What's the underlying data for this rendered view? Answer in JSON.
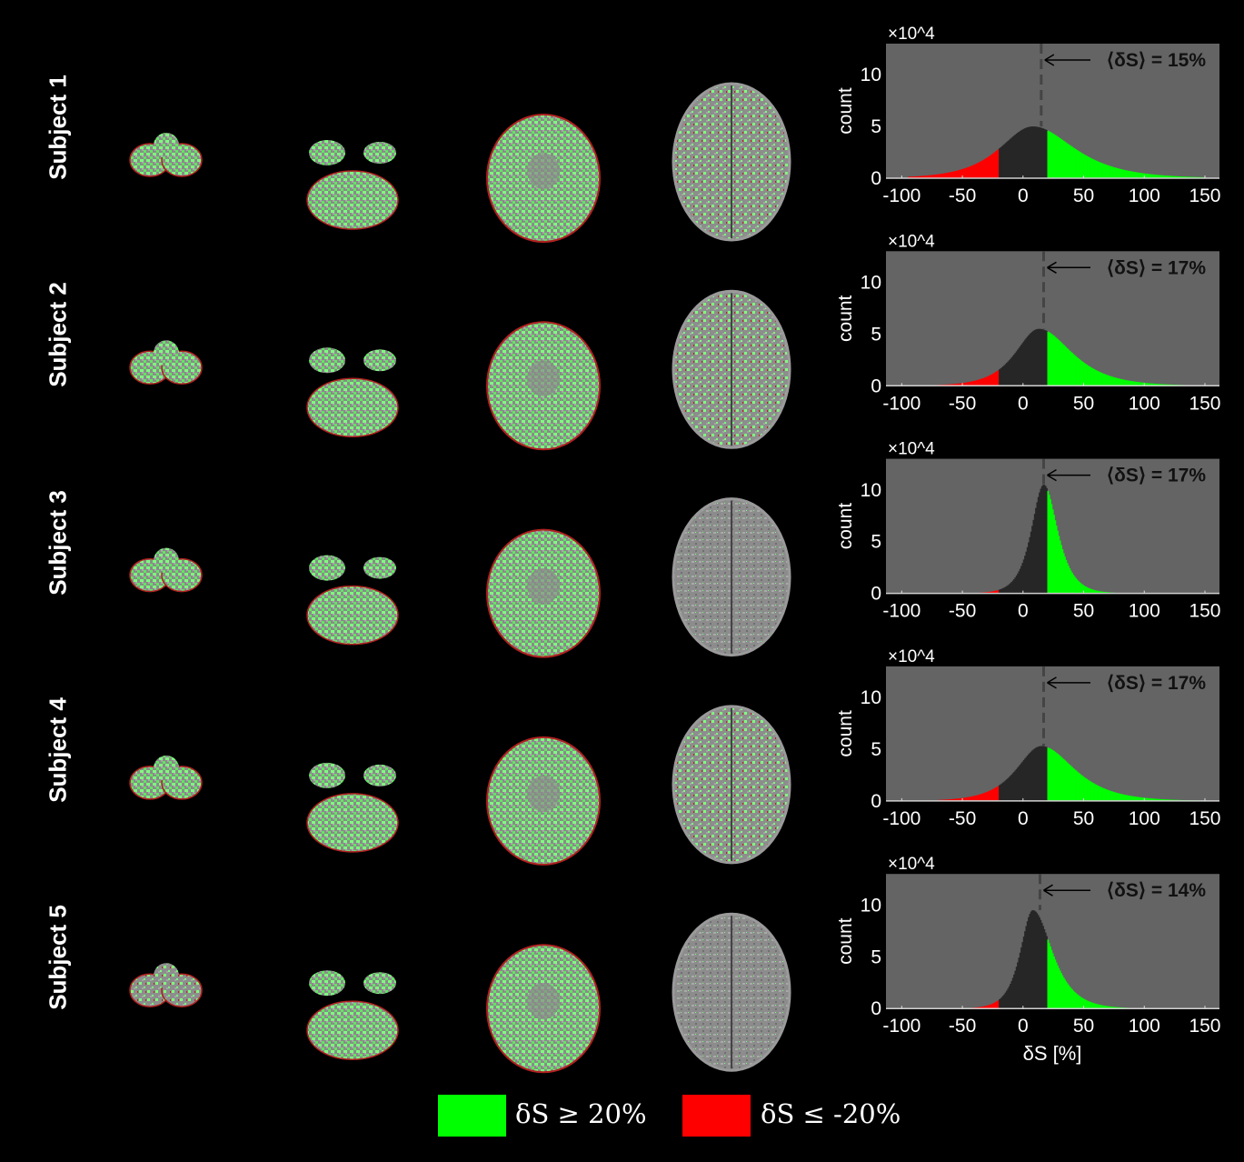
{
  "rows": [
    {
      "label": "Subject 1"
    },
    {
      "label": "Subject 2"
    },
    {
      "label": "Subject 3"
    },
    {
      "label": "Subject 4"
    },
    {
      "label": "Subject 5"
    }
  ],
  "legend": {
    "items": [
      {
        "label": "δS ≥ 20%",
        "color": "#00ff00"
      },
      {
        "label": "δS ≤ -20%",
        "color": "#ff0000"
      }
    ]
  },
  "colors": {
    "plot_bg": "#646464",
    "hist_mid": "#262626",
    "positive": "#00ff00",
    "negative": "#ff0000",
    "background": "#000000"
  },
  "chart_data": [
    {
      "type": "bar",
      "title": "Subject 1",
      "xlabel": "",
      "ylabel": "count",
      "y_multiplier": "×10^4",
      "xlim": [
        -113,
        162
      ],
      "ylim": [
        0,
        13
      ],
      "xticks": [
        -100,
        -50,
        0,
        50,
        100,
        150
      ],
      "yticks": [
        0,
        5,
        10
      ],
      "thresholds": [
        -20,
        20
      ],
      "mean": 15,
      "annotation": "⟨δS⟩ = 15%",
      "distribution": {
        "peak_x": 8,
        "peak_count": 5.0,
        "left_scale": 24,
        "right_scale": 30,
        "min": -95,
        "max": 150
      }
    },
    {
      "type": "bar",
      "title": "Subject 2",
      "xlabel": "",
      "ylabel": "count",
      "y_multiplier": "×10^4",
      "xlim": [
        -113,
        162
      ],
      "ylim": [
        0,
        13
      ],
      "xticks": [
        -100,
        -50,
        0,
        50,
        100,
        150
      ],
      "yticks": [
        0,
        5,
        10
      ],
      "thresholds": [
        -20,
        20
      ],
      "mean": 17,
      "annotation": "⟨δS⟩ = 17%",
      "distribution": {
        "peak_x": 13,
        "peak_count": 5.5,
        "left_scale": 17,
        "right_scale": 24,
        "min": -75,
        "max": 150
      }
    },
    {
      "type": "bar",
      "title": "Subject 3",
      "xlabel": "",
      "ylabel": "count",
      "y_multiplier": "×10^4",
      "xlim": [
        -113,
        162
      ],
      "ylim": [
        0,
        13
      ],
      "xticks": [
        -100,
        -50,
        0,
        50,
        100,
        150
      ],
      "yticks": [
        0,
        5,
        10
      ],
      "thresholds": [
        -20,
        20
      ],
      "mean": 17,
      "annotation": "⟨δS⟩ = 17%",
      "distribution": {
        "peak_x": 17,
        "peak_count": 10.5,
        "left_scale": 9,
        "right_scale": 10,
        "min": -40,
        "max": 120
      }
    },
    {
      "type": "bar",
      "title": "Subject 4",
      "xlabel": "",
      "ylabel": "count",
      "y_multiplier": "×10^4",
      "xlim": [
        -113,
        162
      ],
      "ylim": [
        0,
        13
      ],
      "xticks": [
        -100,
        -50,
        0,
        50,
        100,
        150
      ],
      "yticks": [
        0,
        5,
        10
      ],
      "thresholds": [
        -20,
        20
      ],
      "mean": 17,
      "annotation": "⟨δS⟩ = 17%",
      "distribution": {
        "peak_x": 15,
        "peak_count": 5.3,
        "left_scale": 18,
        "right_scale": 24,
        "min": -70,
        "max": 150
      }
    },
    {
      "type": "bar",
      "title": "Subject 5",
      "xlabel": "δS [%]",
      "ylabel": "count",
      "y_multiplier": "×10^4",
      "xlim": [
        -113,
        162
      ],
      "ylim": [
        0,
        13
      ],
      "xticks": [
        -100,
        -50,
        0,
        50,
        100,
        150
      ],
      "yticks": [
        0,
        5,
        10
      ],
      "thresholds": [
        -20,
        20
      ],
      "mean": 14,
      "annotation": "⟨δS⟩ = 14%",
      "distribution": {
        "peak_x": 8,
        "peak_count": 9.5,
        "left_scale": 9,
        "right_scale": 14,
        "min": -50,
        "max": 110
      }
    }
  ]
}
